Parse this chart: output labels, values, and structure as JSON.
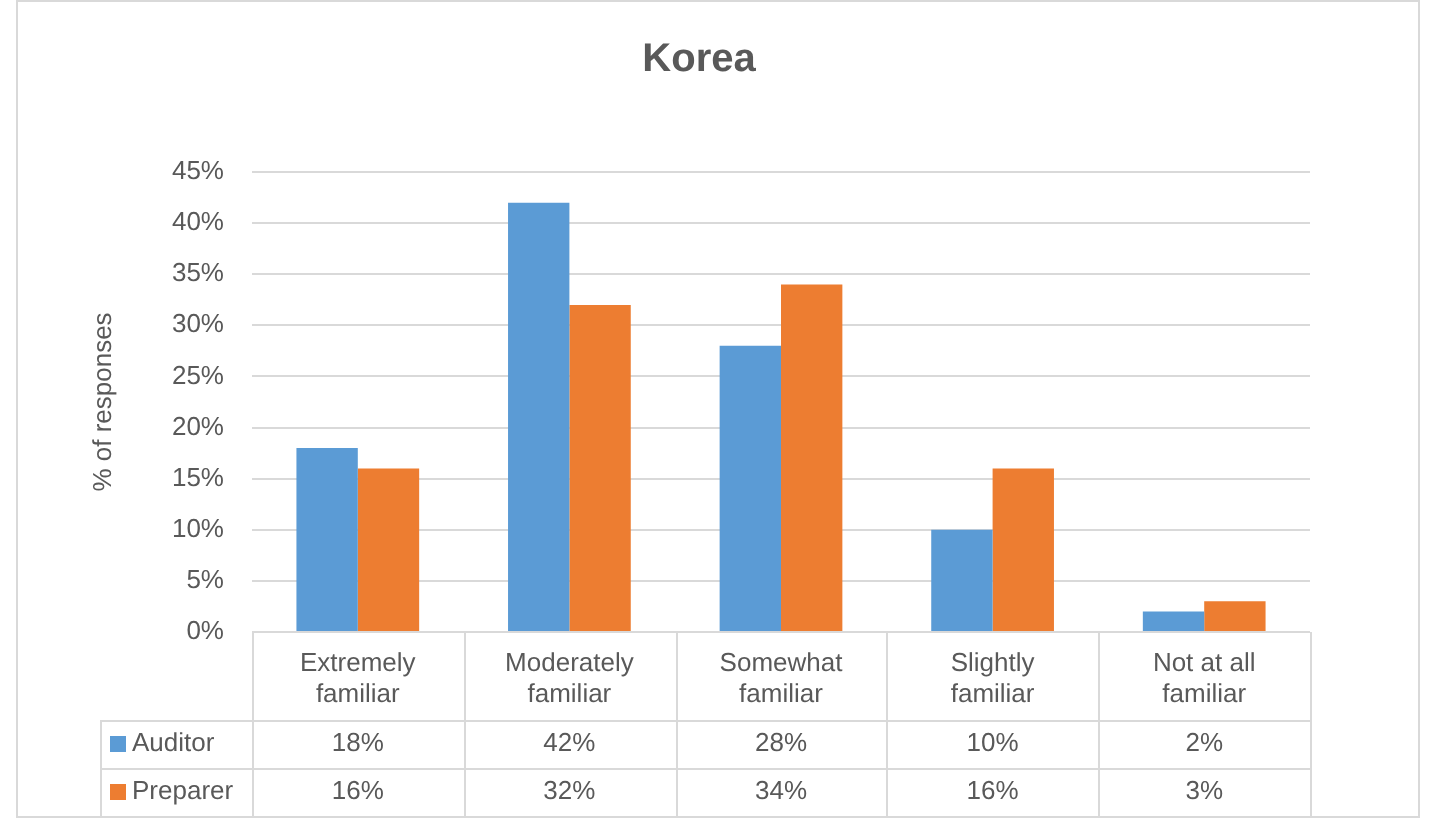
{
  "chart_data": {
    "type": "bar",
    "title": "Korea",
    "ylabel": "% of responses",
    "categories": [
      "Extremely familiar",
      "Moderately familiar",
      "Somewhat familiar",
      "Slightly familiar",
      "Not at all familiar"
    ],
    "series": [
      {
        "name": "Auditor",
        "color": "#5b9bd5",
        "values": [
          18,
          42,
          28,
          10,
          2
        ],
        "value_labels": [
          "18%",
          "42%",
          "28%",
          "10%",
          "2%"
        ]
      },
      {
        "name": "Preparer",
        "color": "#ed7d31",
        "values": [
          16,
          32,
          34,
          16,
          3
        ],
        "value_labels": [
          "16%",
          "32%",
          "34%",
          "16%",
          "3%"
        ]
      }
    ],
    "ylim": [
      0,
      45
    ],
    "yticks": [
      {
        "value": 0,
        "label": "0%"
      },
      {
        "value": 5,
        "label": "5%"
      },
      {
        "value": 10,
        "label": "10%"
      },
      {
        "value": 15,
        "label": "15%"
      },
      {
        "value": 20,
        "label": "20%"
      },
      {
        "value": 25,
        "label": "25%"
      },
      {
        "value": 30,
        "label": "30%"
      },
      {
        "value": 35,
        "label": "35%"
      },
      {
        "value": 40,
        "label": "40%"
      },
      {
        "value": 45,
        "label": "45%"
      }
    ],
    "grid": "y",
    "legend": "bottom"
  }
}
